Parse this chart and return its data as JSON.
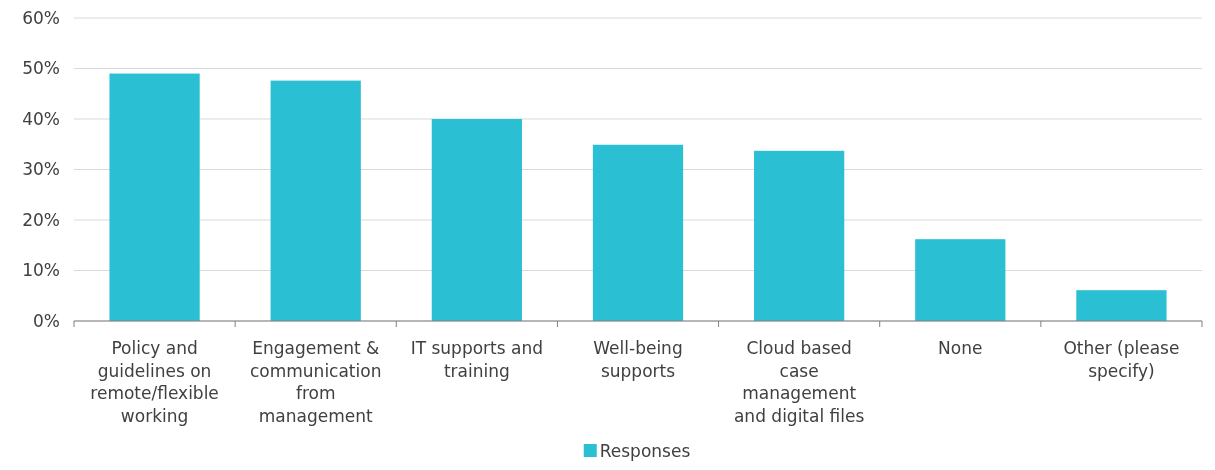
{
  "chart_data": {
    "type": "bar",
    "categories": [
      "Policy and guidelines on remote/flexible working",
      "Engagement & communication from management",
      "IT supports and training",
      "Well-being supports",
      "Cloud based case management and digital files",
      "None",
      "Other (please specify)"
    ],
    "series": [
      {
        "name": "Responses",
        "color": "#2bbfd3",
        "values": [
          49,
          47.6,
          40,
          34.9,
          33.7,
          16.2,
          6.1
        ]
      }
    ],
    "ylim": [
      0,
      60
    ],
    "yticks": [
      {
        "value": 0,
        "label": "0%"
      },
      {
        "value": 10,
        "label": "10%"
      },
      {
        "value": 20,
        "label": "20%"
      },
      {
        "value": 30,
        "label": "30%"
      },
      {
        "value": 40,
        "label": "40%"
      },
      {
        "value": 50,
        "label": "50%"
      },
      {
        "value": 60,
        "label": "60%"
      }
    ],
    "grid": "y",
    "legend": "bottom"
  }
}
